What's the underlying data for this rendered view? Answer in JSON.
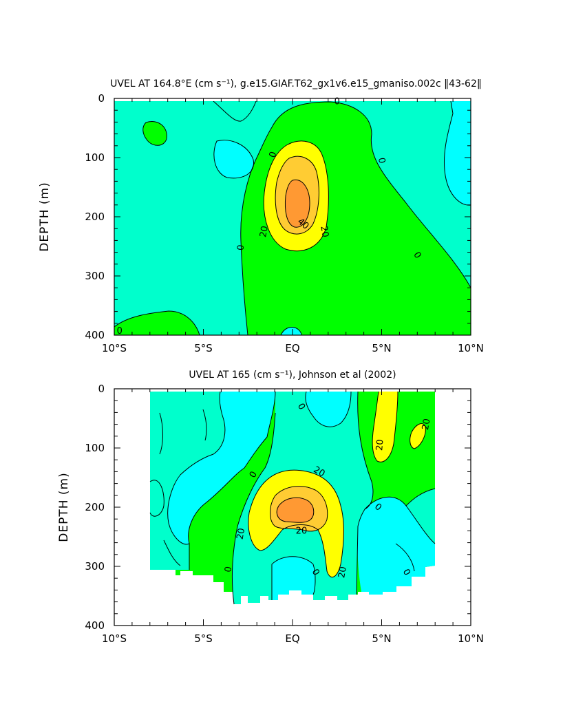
{
  "colors": {
    "lt0": "#00ffff",
    "b0_10": "#00ffcc",
    "b10_20": "#00ff00",
    "b20_30": "#ffff00",
    "b30_40": "#ffcc33",
    "b40_50": "#ff9933",
    "axis": "#000000",
    "contour": "#000000"
  },
  "chart_data": [
    {
      "type": "contour",
      "title": "UVEL AT 164.8°E (cm s⁻¹), g.e15.GIAF.T62_gx1v6.e15_gmaniso.002c ‖43-62‖",
      "ylabel": "DEPTH (m)",
      "xlabel": "",
      "x_ticks": [
        "10°S",
        "5°S",
        "EQ",
        "5°N",
        "10°N"
      ],
      "x_tick_values": [
        -10,
        -5,
        0,
        5,
        10
      ],
      "y_ticks": [
        "0",
        "100",
        "200",
        "300",
        "400"
      ],
      "y_tick_values": [
        0,
        100,
        200,
        300,
        400
      ],
      "xlim": [
        -10,
        10
      ],
      "ylim": [
        400,
        0
      ],
      "contour_interval": 10,
      "contour_labels": [
        {
          "text": "0",
          "lat": 2.5,
          "depth": 5,
          "rot": 0
        },
        {
          "text": "0",
          "lat": -1.1,
          "depth": 95,
          "rot": -70
        },
        {
          "text": "0",
          "lat": 5.0,
          "depth": 105,
          "rot": 80
        },
        {
          "text": "0",
          "lat": -2.9,
          "depth": 252,
          "rot": -85
        },
        {
          "text": "0",
          "lat": 7.0,
          "depth": 265,
          "rot": 60
        },
        {
          "text": "0",
          "lat": -9.7,
          "depth": 393,
          "rot": 0
        },
        {
          "text": "20",
          "lat": -1.6,
          "depth": 225,
          "rot": -80
        },
        {
          "text": "40",
          "lat": 0.6,
          "depth": 212,
          "rot": 40
        },
        {
          "text": "20",
          "lat": 1.8,
          "depth": 225,
          "rot": 80
        }
      ]
    },
    {
      "type": "contour",
      "title": "UVEL AT 165 (cm s⁻¹), Johnson et al (2002)",
      "ylabel": "DEPTH (m)",
      "xlabel": "",
      "x_ticks": [
        "10°S",
        "5°S",
        "EQ",
        "5°N",
        "10°N"
      ],
      "x_tick_values": [
        -10,
        -5,
        0,
        5,
        10
      ],
      "y_ticks": [
        "0",
        "100",
        "200",
        "300",
        "400"
      ],
      "y_tick_values": [
        0,
        100,
        200,
        300,
        400
      ],
      "xlim": [
        -10,
        10
      ],
      "ylim": [
        400,
        0
      ],
      "data_extent_lat": [
        -8,
        8
      ],
      "contour_interval": 10,
      "contour_labels": [
        {
          "text": "0",
          "lat": 0.5,
          "depth": 30,
          "rot": 60
        },
        {
          "text": "20",
          "lat": 4.9,
          "depth": 95,
          "rot": -85
        },
        {
          "text": "20",
          "lat": 7.5,
          "depth": 60,
          "rot": -80
        },
        {
          "text": "20",
          "lat": 1.5,
          "depth": 140,
          "rot": 30
        },
        {
          "text": "0",
          "lat": -2.2,
          "depth": 145,
          "rot": -60
        },
        {
          "text": "20",
          "lat": -2.9,
          "depth": 245,
          "rot": -80
        },
        {
          "text": "20",
          "lat": 0.5,
          "depth": 240,
          "rot": 0
        },
        {
          "text": "0",
          "lat": 4.8,
          "depth": 200,
          "rot": 40
        },
        {
          "text": "0",
          "lat": -3.6,
          "depth": 305,
          "rot": -80
        },
        {
          "text": "0",
          "lat": 1.3,
          "depth": 310,
          "rot": 60
        },
        {
          "text": "20",
          "lat": 2.8,
          "depth": 310,
          "rot": -80
        },
        {
          "text": "0",
          "lat": 6.4,
          "depth": 310,
          "rot": 60
        }
      ]
    }
  ]
}
